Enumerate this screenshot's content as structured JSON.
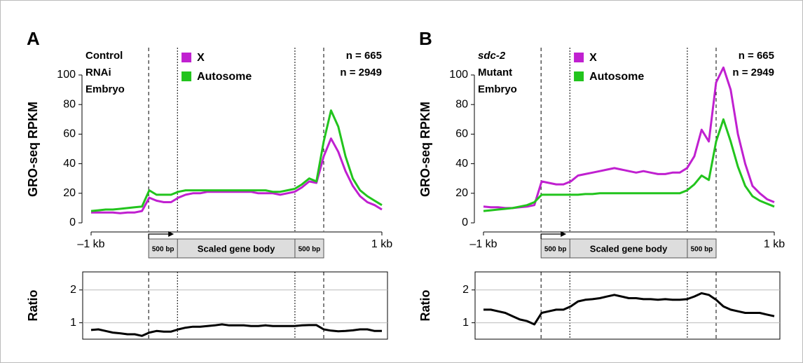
{
  "chart_data": [
    {
      "type": "line",
      "panel": "A",
      "annotation_lines": [
        "Control",
        "RNAi",
        "Embryo"
      ],
      "n_labels": [
        "n = 665",
        "n = 2949"
      ],
      "ylabel": "GRO-seq RPKM",
      "gene_diagram": [
        "500 bp",
        "Scaled gene body",
        "500 bp"
      ],
      "x": [
        -1000,
        -950,
        -900,
        -850,
        -800,
        -750,
        -700,
        -650,
        -600,
        -550,
        -500,
        -450,
        -400,
        -350,
        -300,
        -250,
        -200,
        -150,
        -100,
        -50,
        0,
        50,
        100,
        150,
        200,
        250,
        300,
        350,
        400,
        450,
        500,
        550,
        600,
        650,
        700,
        750,
        800,
        850,
        900,
        950,
        1000
      ],
      "xlim": [
        -1000,
        1000
      ],
      "xticks": [
        {
          "value": -1000,
          "label": "–1 kb"
        },
        {
          "value": 1000,
          "label": "1 kb"
        }
      ],
      "ylim": [
        0,
        100
      ],
      "yticks": [
        0,
        20,
        40,
        60,
        80,
        100
      ],
      "series": [
        {
          "name": "X",
          "color": "#c020d0",
          "values": [
            7,
            7,
            7,
            7,
            6.5,
            7,
            7,
            8,
            17,
            15,
            14,
            14,
            17,
            19,
            20,
            20,
            21,
            21,
            21,
            21,
            21,
            21,
            21,
            20,
            20,
            20,
            19,
            20,
            21,
            24,
            28,
            27,
            45,
            57,
            48,
            35,
            25,
            18,
            14,
            12,
            9
          ]
        },
        {
          "name": "Autosome",
          "color": "#22c41d",
          "values": [
            8,
            8.5,
            9,
            9,
            9.5,
            10,
            10.5,
            11,
            22,
            19,
            19,
            19,
            21,
            22,
            22,
            22,
            22,
            22,
            22,
            22,
            22,
            22,
            22,
            22,
            22,
            21,
            21,
            22,
            23,
            26,
            30,
            28,
            55,
            76,
            65,
            45,
            30,
            22,
            18,
            15,
            12
          ]
        }
      ]
    },
    {
      "type": "line",
      "ylabel": "Ratio",
      "x": [
        -1000,
        -950,
        -900,
        -850,
        -800,
        -750,
        -700,
        -650,
        -600,
        -550,
        -500,
        -450,
        -400,
        -350,
        -300,
        -250,
        -200,
        -150,
        -100,
        -50,
        0,
        50,
        100,
        150,
        200,
        250,
        300,
        350,
        400,
        450,
        500,
        550,
        600,
        650,
        700,
        750,
        800,
        850,
        900,
        950,
        1000
      ],
      "xlim": [
        -1000,
        1000
      ],
      "ylim": [
        0.5,
        2.55
      ],
      "yticks": [
        1,
        2
      ],
      "grid": true,
      "series": [
        {
          "color": "#000000",
          "values": [
            0.78,
            0.8,
            0.75,
            0.7,
            0.68,
            0.65,
            0.65,
            0.6,
            0.7,
            0.75,
            0.73,
            0.73,
            0.8,
            0.85,
            0.88,
            0.88,
            0.9,
            0.92,
            0.95,
            0.92,
            0.92,
            0.92,
            0.9,
            0.9,
            0.92,
            0.9,
            0.9,
            0.9,
            0.9,
            0.92,
            0.93,
            0.93,
            0.8,
            0.76,
            0.74,
            0.75,
            0.77,
            0.8,
            0.8,
            0.75,
            0.75
          ]
        }
      ]
    },
    {
      "type": "line",
      "panel": "B",
      "annotation_lines": [
        "sdc-2",
        "Mutant",
        "Embryo"
      ],
      "n_labels": [
        "n = 665",
        "n = 2949"
      ],
      "ylabel": "GRO-seq RPKM",
      "gene_diagram": [
        "500 bp",
        "Scaled gene body",
        "500 bp"
      ],
      "x": [
        -1000,
        -950,
        -900,
        -850,
        -800,
        -750,
        -700,
        -650,
        -600,
        -550,
        -500,
        -450,
        -400,
        -350,
        -300,
        -250,
        -200,
        -150,
        -100,
        -50,
        0,
        50,
        100,
        150,
        200,
        250,
        300,
        350,
        400,
        450,
        500,
        550,
        600,
        650,
        700,
        750,
        800,
        850,
        900,
        950,
        1000
      ],
      "xlim": [
        -1000,
        1000
      ],
      "xticks": [
        {
          "value": -1000,
          "label": "–1 kb"
        },
        {
          "value": 1000,
          "label": "1 kb"
        }
      ],
      "ylim": [
        0,
        100
      ],
      "yticks": [
        0,
        20,
        40,
        60,
        80,
        100
      ],
      "series": [
        {
          "name": "X",
          "color": "#c020d0",
          "values": [
            11,
            10.5,
            10.5,
            10,
            10,
            10.5,
            11,
            12,
            28,
            27,
            26,
            26,
            28,
            32,
            33,
            34,
            35,
            36,
            37,
            36,
            35,
            34,
            35,
            34,
            33,
            33,
            34,
            34,
            37,
            45,
            63,
            55,
            95,
            105,
            90,
            60,
            40,
            25,
            20,
            16,
            14
          ]
        },
        {
          "name": "Autosome",
          "color": "#22c41d",
          "values": [
            8,
            8.5,
            9,
            9.5,
            10,
            11,
            12,
            14,
            19,
            19,
            19,
            19,
            19,
            19,
            19.5,
            19.5,
            20,
            20,
            20,
            20,
            20,
            20,
            20,
            20,
            20,
            20,
            20,
            20,
            22,
            26,
            32,
            29,
            55,
            70,
            55,
            38,
            25,
            18,
            15,
            13,
            11
          ]
        }
      ]
    },
    {
      "type": "line",
      "ylabel": "Ratio",
      "x": [
        -1000,
        -950,
        -900,
        -850,
        -800,
        -750,
        -700,
        -650,
        -600,
        -550,
        -500,
        -450,
        -400,
        -350,
        -300,
        -250,
        -200,
        -150,
        -100,
        -50,
        0,
        50,
        100,
        150,
        200,
        250,
        300,
        350,
        400,
        450,
        500,
        550,
        600,
        650,
        700,
        750,
        800,
        850,
        900,
        950,
        1000
      ],
      "xlim": [
        -1000,
        1000
      ],
      "ylim": [
        0.5,
        2.55
      ],
      "yticks": [
        1,
        2
      ],
      "grid": true,
      "series": [
        {
          "color": "#000000",
          "values": [
            1.4,
            1.4,
            1.35,
            1.3,
            1.2,
            1.1,
            1.05,
            0.95,
            1.3,
            1.35,
            1.4,
            1.4,
            1.5,
            1.65,
            1.7,
            1.72,
            1.75,
            1.8,
            1.85,
            1.8,
            1.75,
            1.75,
            1.72,
            1.72,
            1.7,
            1.72,
            1.7,
            1.7,
            1.72,
            1.8,
            1.9,
            1.85,
            1.7,
            1.5,
            1.4,
            1.35,
            1.3,
            1.3,
            1.3,
            1.25,
            1.2
          ]
        }
      ]
    }
  ]
}
